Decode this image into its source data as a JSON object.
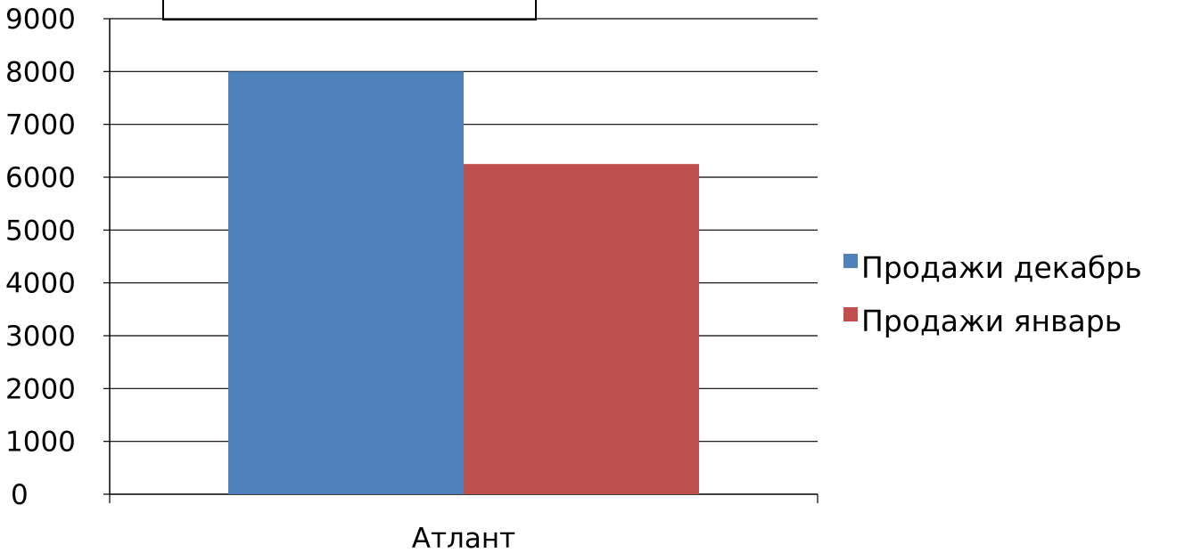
{
  "chart_data": {
    "type": "bar",
    "title": "",
    "xlabel": "",
    "ylabel": "",
    "categories": [
      "Атлант"
    ],
    "series": [
      {
        "name": "Продажи декабрь",
        "values": [
          8000
        ],
        "color": "#4F81BD"
      },
      {
        "name": "Продажи январь",
        "values": [
          6250
        ],
        "color": "#C0504D"
      }
    ],
    "ylim": [
      0,
      9000
    ],
    "yticks": [
      0,
      1000,
      2000,
      3000,
      4000,
      5000,
      6000,
      7000,
      8000,
      9000
    ],
    "grid": true,
    "legend_position": "right"
  }
}
